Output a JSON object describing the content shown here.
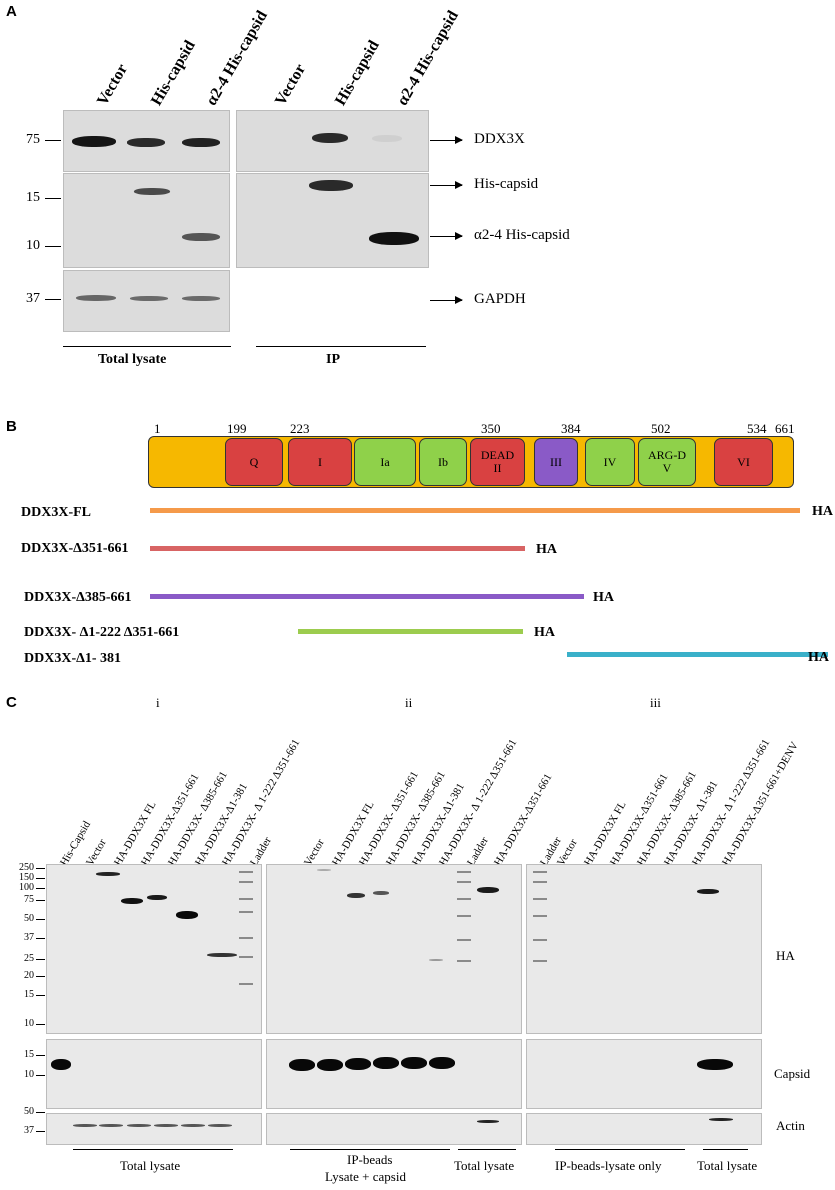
{
  "panel_a": {
    "letter": "A",
    "lanes_total": [
      "Vector",
      "His-capsid",
      "α2-4 His-capsid"
    ],
    "lanes_ip": [
      "Vector",
      "His-capsid",
      "α2-4 His-capsid"
    ],
    "mw": [
      "75",
      "15",
      "10",
      "37"
    ],
    "targets": [
      "DDX3X",
      "His-capsid",
      "α2-4 His-capsid",
      "GAPDH"
    ],
    "group_total": "Total lysate",
    "group_ip": "IP"
  },
  "panel_b": {
    "letter": "B",
    "positions": [
      "1",
      "199",
      "223",
      "350",
      "384",
      "502",
      "534",
      "661"
    ],
    "domains": [
      "Q",
      "I",
      "Ia",
      "Ib",
      "DEAD",
      "II",
      "III",
      "IV",
      "ARG-D",
      "V",
      "VI"
    ],
    "constructs": [
      "DDX3X-FL",
      "DDX3X-Δ351-661",
      "DDX3X-Δ385-661",
      "DDX3X- Δ1-222 Δ351-661",
      "DDX3X-Δ1- 381"
    ],
    "tag": "HA",
    "colors": {
      "backbone": "#f6b800",
      "red": "#d94141",
      "green": "#8fd14a",
      "purple": "#8a5ac7",
      "fl": "#f59a4a",
      "d351": "#d86464",
      "d385": "#8a5ac7",
      "d1_222": "#9ccc4e",
      "d1_381": "#3ab0c9"
    }
  },
  "panel_c": {
    "letter": "C",
    "subpanels": [
      "i",
      "ii",
      "iii"
    ],
    "lanes_i": [
      "His-Capsid",
      "Vector",
      "HA-DDX3X FL",
      "HA-DDX3X-Δ351-661",
      "HA-DDX3X- Δ385-661",
      "HA-DDX3X-Δ1-381",
      "HA-DDX3X- Δ 1-222 Δ351-661",
      "Ladder"
    ],
    "lanes_ii": [
      "Vector",
      "HA-DDX3X FL",
      "HA-DDX3X- Δ351-661",
      "HA-DDX3X- Δ385-661",
      "HA-DDX3X-Δ1-381",
      "HA-DDX3X- Δ 1-222 Δ351-661",
      "Ladder",
      "HA-DDX3X-Δ351-661"
    ],
    "lanes_iii": [
      "Ladder",
      "Vector",
      "HA-DDX3X FL",
      "HA-DDX3X-Δ351-661",
      "HA-DDX3X- Δ385-661",
      "HA-DDX3X- Δ1-381",
      "HA-DDX3X- Δ 1-222 Δ351-661",
      "HA-DDX3X-Δ351-661+DENV"
    ],
    "mw_ha": [
      "250",
      "150",
      "100",
      "75",
      "50",
      "37",
      "25",
      "20",
      "15",
      "10"
    ],
    "mw_capsid": [
      "15",
      "10"
    ],
    "mw_actin": [
      "50",
      "37"
    ],
    "targets": [
      "HA",
      "Capsid",
      "Actin"
    ],
    "group_i": "Total lysate",
    "group_ii_1": "IP-beads",
    "group_ii_2": "Lysate + capsid",
    "group_ii_total": "Total lysate",
    "group_iii": "IP-beads-lysate only",
    "group_iii_total": "Total lysate"
  }
}
